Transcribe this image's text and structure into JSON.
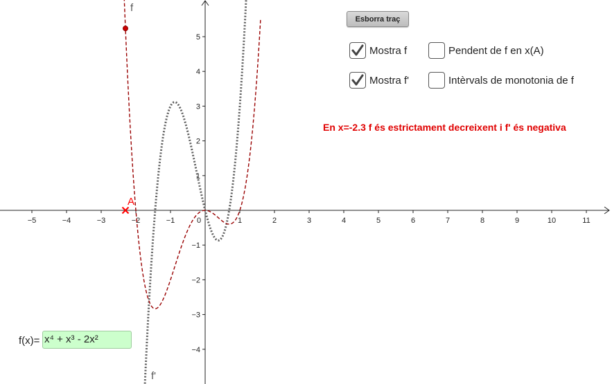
{
  "toolbar": {
    "clear_trace_label": "Esborra traç"
  },
  "checkboxes": [
    {
      "label": "Mostra f",
      "checked": true
    },
    {
      "label": "Pendent de f en x(A)",
      "checked": false
    },
    {
      "label": "Mostra f'",
      "checked": true
    },
    {
      "label": "Intèrvals de monotonia de f",
      "checked": false
    }
  ],
  "message": "En x=-2.3  f és estrictament decreixent i f' és negativa",
  "input": {
    "label": "f(x)=",
    "value": "x⁴ + x³ - 2x²"
  },
  "graph": {
    "f_label": "f",
    "fprime_label": "f'",
    "point_label": "A",
    "point_x": -2.3,
    "x_ticks": [
      "−5",
      "−4",
      "−3",
      "−2",
      "−1",
      "0",
      "1",
      "2",
      "3",
      "4",
      "5",
      "6",
      "7",
      "8",
      "9",
      "10",
      "11"
    ],
    "y_ticks": [
      "5",
      "4",
      "3",
      "2",
      "1",
      "−1",
      "−2",
      "−3",
      "−4"
    ],
    "colors": {
      "f": "#990000",
      "fprime": "#606060",
      "point": "#ff0000",
      "axis": "#222222"
    }
  }
}
